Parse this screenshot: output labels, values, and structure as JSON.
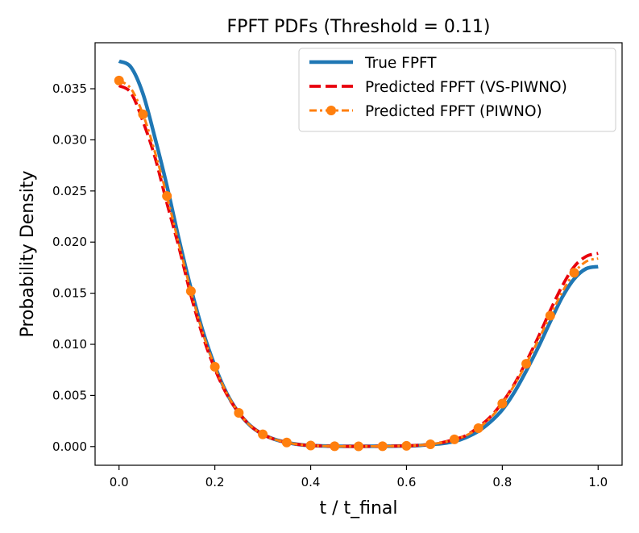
{
  "chart_data": {
    "type": "line",
    "title": "FPFT PDFs (Threshold = 0.11)",
    "xlabel": "t / t_final",
    "ylabel": "Probability Density",
    "xlim": [
      -0.05,
      1.05
    ],
    "ylim": [
      -0.00183,
      0.0395
    ],
    "xticks": [
      0.0,
      0.2,
      0.4,
      0.6,
      0.8,
      1.0
    ],
    "xtick_labels": [
      "0.0",
      "0.2",
      "0.4",
      "0.6",
      "0.8",
      "1.0"
    ],
    "yticks": [
      0.0,
      0.005,
      0.01,
      0.015,
      0.02,
      0.025,
      0.03,
      0.035
    ],
    "ytick_labels": [
      "0.000",
      "0.005",
      "0.010",
      "0.015",
      "0.020",
      "0.025",
      "0.030",
      "0.035"
    ],
    "grid": false,
    "legend_position": "top-right",
    "series": [
      {
        "name": "True FPFT",
        "color": "#1f77b4",
        "style": "solid",
        "x": [
          0.0,
          0.025,
          0.05,
          0.075,
          0.1,
          0.125,
          0.15,
          0.175,
          0.2,
          0.225,
          0.25,
          0.275,
          0.3,
          0.325,
          0.35,
          0.375,
          0.4,
          0.45,
          0.5,
          0.55,
          0.6,
          0.625,
          0.65,
          0.675,
          0.7,
          0.725,
          0.75,
          0.775,
          0.8,
          0.825,
          0.85,
          0.875,
          0.9,
          0.925,
          0.95,
          0.975,
          1.0
        ],
        "y": [
          0.0377,
          0.0371,
          0.0345,
          0.0302,
          0.0255,
          0.0203,
          0.0155,
          0.0113,
          0.0079,
          0.0052,
          0.0033,
          0.002,
          0.0012,
          0.0007,
          0.0004,
          0.0002,
          0.0001,
          3e-05,
          2e-05,
          3e-05,
          6e-05,
          0.0001,
          0.0002,
          0.0003,
          0.0005,
          0.0009,
          0.0015,
          0.0024,
          0.0036,
          0.0053,
          0.0074,
          0.0097,
          0.0122,
          0.0146,
          0.0164,
          0.0174,
          0.0176
        ]
      },
      {
        "name": "Predicted FPFT (VS-PIWNO)",
        "color": "#e8000b",
        "style": "dashed",
        "x": [
          0.0,
          0.025,
          0.05,
          0.075,
          0.1,
          0.125,
          0.15,
          0.175,
          0.2,
          0.225,
          0.25,
          0.275,
          0.3,
          0.325,
          0.35,
          0.375,
          0.4,
          0.45,
          0.5,
          0.55,
          0.6,
          0.625,
          0.65,
          0.675,
          0.7,
          0.725,
          0.75,
          0.775,
          0.8,
          0.825,
          0.85,
          0.875,
          0.9,
          0.925,
          0.95,
          0.975,
          1.0
        ],
        "y": [
          0.0353,
          0.0346,
          0.0318,
          0.0283,
          0.0238,
          0.0195,
          0.0148,
          0.0108,
          0.0076,
          0.0051,
          0.0033,
          0.002,
          0.0012,
          0.0007,
          0.0004,
          0.0002,
          0.0001,
          3e-05,
          2e-05,
          3e-05,
          7e-05,
          0.00012,
          0.00022,
          0.0004,
          0.0007,
          0.0011,
          0.0019,
          0.0029,
          0.0043,
          0.0061,
          0.0083,
          0.0107,
          0.0133,
          0.0157,
          0.0176,
          0.0186,
          0.0189
        ]
      },
      {
        "name": "Predicted FPFT (PIWNO)",
        "color": "#ff7f0e",
        "style": "dashdot-marker",
        "x": [
          0.0,
          0.025,
          0.05,
          0.075,
          0.1,
          0.125,
          0.15,
          0.175,
          0.2,
          0.225,
          0.25,
          0.275,
          0.3,
          0.325,
          0.35,
          0.375,
          0.4,
          0.45,
          0.5,
          0.55,
          0.6,
          0.625,
          0.65,
          0.675,
          0.7,
          0.725,
          0.75,
          0.775,
          0.8,
          0.825,
          0.85,
          0.875,
          0.9,
          0.925,
          0.95,
          0.975,
          1.0
        ],
        "y": [
          0.0358,
          0.035,
          0.0325,
          0.0288,
          0.0245,
          0.0198,
          0.0152,
          0.0111,
          0.0078,
          0.0052,
          0.0033,
          0.002,
          0.0012,
          0.0007,
          0.0004,
          0.0002,
          0.0001,
          3e-05,
          2e-05,
          3e-05,
          7e-05,
          0.00012,
          0.00022,
          0.0004,
          0.0007,
          0.0011,
          0.0018,
          0.0028,
          0.0042,
          0.006,
          0.0081,
          0.0104,
          0.0128,
          0.0151,
          0.017,
          0.0181,
          0.0184
        ],
        "markers_x": [
          0.0,
          0.05,
          0.1,
          0.15,
          0.2,
          0.25,
          0.3,
          0.35,
          0.4,
          0.45,
          0.5,
          0.55,
          0.6,
          0.65,
          0.7,
          0.75,
          0.8,
          0.85,
          0.9,
          0.95
        ],
        "markers_y": [
          0.0358,
          0.0325,
          0.0245,
          0.0152,
          0.0078,
          0.0033,
          0.0012,
          0.0004,
          0.0001,
          3e-05,
          2e-05,
          3e-05,
          7e-05,
          0.00022,
          0.0007,
          0.0018,
          0.0042,
          0.0081,
          0.0128,
          0.017
        ]
      }
    ]
  }
}
